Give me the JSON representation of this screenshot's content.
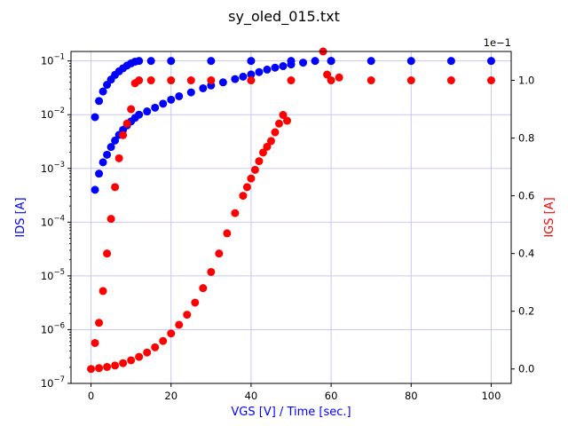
{
  "chart_data": {
    "type": "scatter",
    "title": "sy_oled_015.txt",
    "xlabel": "VGS [V] / Time [sec.]",
    "ylabel_left": "IDS [A]",
    "ylabel_right": "IGS [A]",
    "right_offset_text": "1e−1",
    "xlim": [
      -5,
      105
    ],
    "ylim_left_log": [
      1e-07,
      0.15
    ],
    "ylim_right": [
      -0.05,
      1.1
    ],
    "left_scale": "log",
    "right_scale": "linear",
    "grid": true,
    "x_ticks": [
      0,
      20,
      40,
      60,
      80,
      100
    ],
    "x_tick_labels": [
      "0",
      "20",
      "40",
      "60",
      "80",
      "100"
    ],
    "left_ticks": [
      1e-07,
      1e-06,
      1e-05,
      0.0001,
      0.001,
      0.01,
      0.1
    ],
    "left_tick_exponents": [
      "−7",
      "−6",
      "−5",
      "−4",
      "−3",
      "−2",
      "−1"
    ],
    "right_ticks": [
      0.0,
      0.2,
      0.4,
      0.6,
      0.8,
      1.0
    ],
    "right_tick_labels": [
      "0.0",
      "0.2",
      "0.4",
      "0.6",
      "0.8",
      "1.0"
    ],
    "series": [
      {
        "axis": "left",
        "color": "#0000ff",
        "x": [
          1,
          2,
          3,
          4,
          5,
          6,
          7,
          8,
          9,
          10,
          11,
          12,
          14,
          16,
          18,
          20,
          22,
          25,
          28,
          30,
          33,
          36,
          38,
          40,
          42,
          44,
          46,
          48,
          50,
          53,
          56,
          60
        ],
        "y": [
          0.0004,
          0.0008,
          0.0013,
          0.0018,
          0.0025,
          0.0033,
          0.0042,
          0.0052,
          0.0063,
          0.0075,
          0.0087,
          0.01,
          0.0115,
          0.0135,
          0.016,
          0.019,
          0.022,
          0.026,
          0.031,
          0.035,
          0.04,
          0.046,
          0.051,
          0.056,
          0.062,
          0.069,
          0.075,
          0.08,
          0.086,
          0.093,
          0.1,
          0.1
        ]
      },
      {
        "axis": "left",
        "color": "#0000ff",
        "x": [
          1,
          2,
          3,
          4,
          5,
          6,
          7,
          8,
          9,
          10,
          11,
          12,
          15,
          20,
          30,
          40,
          50,
          60,
          70,
          80,
          90,
          100
        ],
        "y": [
          0.009,
          0.018,
          0.027,
          0.036,
          0.045,
          0.055,
          0.064,
          0.073,
          0.082,
          0.09,
          0.097,
          0.1,
          0.1,
          0.1,
          0.1,
          0.1,
          0.1,
          0.1,
          0.1,
          0.1,
          0.1,
          0.1
        ]
      },
      {
        "axis": "right",
        "color": "#ff0000",
        "x": [
          0,
          2,
          4,
          6,
          8,
          10,
          12,
          14,
          16,
          18,
          20,
          22,
          24,
          26,
          28,
          30,
          32,
          34,
          36,
          38,
          39,
          40,
          41,
          42,
          43,
          44,
          45,
          46,
          47,
          48,
          49
        ],
        "y": [
          0.0,
          0.003,
          0.007,
          0.012,
          0.02,
          0.03,
          0.042,
          0.057,
          0.075,
          0.097,
          0.123,
          0.153,
          0.188,
          0.23,
          0.28,
          0.336,
          0.4,
          0.47,
          0.54,
          0.6,
          0.63,
          0.66,
          0.69,
          0.72,
          0.75,
          0.77,
          0.79,
          0.82,
          0.85,
          0.88,
          0.86
        ]
      },
      {
        "axis": "right",
        "color": "#ff0000",
        "x": [
          1,
          2,
          3,
          4,
          5,
          6,
          7,
          8,
          9,
          10,
          11,
          12,
          15,
          20,
          25,
          30,
          40,
          50,
          58,
          59,
          60,
          62,
          70,
          80,
          90,
          100
        ],
        "y": [
          0.09,
          0.16,
          0.27,
          0.4,
          0.52,
          0.63,
          0.73,
          0.81,
          0.85,
          0.9,
          0.99,
          1.0,
          1.0,
          1.0,
          1.0,
          1.0,
          1.0,
          1.0,
          1.1,
          1.02,
          1.0,
          1.01,
          1.0,
          1.0,
          1.0,
          1.0
        ]
      }
    ]
  }
}
